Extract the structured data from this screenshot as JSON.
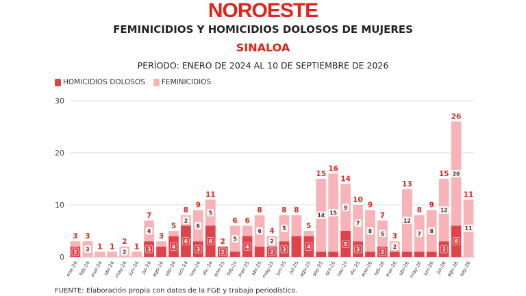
{
  "header": {
    "logo": "NOROESTE",
    "title": "FEMINICIDIOS Y HOMICIDIOS DOLOSOS DE MUJERES",
    "subtitle": "SINALOA",
    "period": "PERÍODO: ENERO DE 2024 AL 10 DE SEPTIEMBRE DE 2026"
  },
  "footer": {
    "source": "FUENTE: Elaboración propia con datos de la FGE y trabajo periodístico."
  },
  "colors": {
    "homicidios": "#e0424a",
    "feminicidios": "#f7b3b7",
    "total_label": "#e2231a",
    "grid": "#dddddd"
  },
  "chart_data": {
    "type": "bar",
    "stacked": true,
    "ylim": [
      0,
      30
    ],
    "yticks": [
      0,
      10,
      20,
      30
    ],
    "legend": "top-left",
    "categories": [
      "ene-24",
      "feb-24",
      "mar-24",
      "abr-24",
      "may-24",
      "jun-24",
      "jul-24",
      "ago-24",
      "sep-24",
      "oct-24",
      "nov-24",
      "dic-24",
      "ene-25",
      "feb-25",
      "mar-25",
      "abr-25",
      "may-25",
      "jun-25",
      "jul-25",
      "ago-25",
      "sep-25",
      "oct-25",
      "nov-25",
      "dic-25",
      "ene-26",
      "feb-26",
      "mar-26",
      "abr-26",
      "may-26",
      "jun-26",
      "jul-26",
      "ago-26",
      "sep-26"
    ],
    "series": [
      {
        "name": "HOMICIDIOS DOLOSOS",
        "values": [
          2,
          0,
          0,
          0,
          0,
          0,
          3,
          2,
          4,
          6,
          3,
          6,
          2,
          1,
          4,
          2,
          2,
          3,
          4,
          4,
          1,
          1,
          5,
          3,
          1,
          2,
          1,
          1,
          1,
          1,
          3,
          6,
          0
        ],
        "labels": [
          "2",
          "",
          "",
          "",
          "",
          "",
          "3",
          "",
          "4",
          "6",
          "3",
          "6",
          "2",
          "",
          "4",
          "",
          "2",
          "3",
          "",
          "4",
          "",
          "",
          "5",
          "3",
          "",
          "2",
          "",
          "",
          "",
          "",
          "3",
          "6",
          ""
        ]
      },
      {
        "name": "FEMINICIDIOS",
        "values": [
          1,
          3,
          1,
          1,
          2,
          1,
          4,
          1,
          1,
          2,
          6,
          5,
          0,
          5,
          2,
          6,
          2,
          5,
          4,
          1,
          14,
          15,
          9,
          7,
          8,
          5,
          2,
          12,
          7,
          8,
          12,
          20,
          11
        ],
        "labels": [
          "",
          "3",
          "",
          "",
          "2",
          "",
          "4",
          "",
          "",
          "2",
          "6",
          "5",
          "",
          "5",
          "",
          "6",
          "2",
          "5",
          "",
          "",
          "14",
          "15",
          "9",
          "7",
          "8",
          "5",
          "2",
          "12",
          "7",
          "8",
          "12",
          "20",
          "11"
        ]
      }
    ],
    "totals": [
      3,
      3,
      1,
      1,
      2,
      1,
      7,
      3,
      5,
      8,
      9,
      11,
      2,
      6,
      6,
      8,
      4,
      8,
      8,
      5,
      15,
      16,
      14,
      10,
      9,
      7,
      3,
      13,
      8,
      9,
      15,
      26,
      11
    ]
  }
}
